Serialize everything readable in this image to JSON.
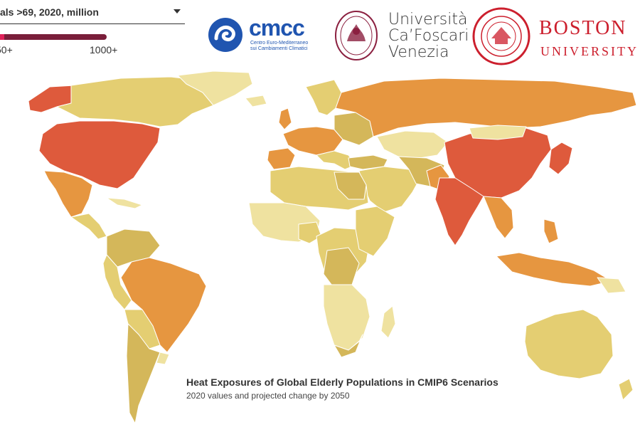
{
  "selector": {
    "label": "als >69, 2020, million"
  },
  "legend": {
    "min_label": "50+",
    "max_label": "1000+",
    "start_color": "#e0225a",
    "end_color": "#7a1e3a"
  },
  "logos": {
    "cmcc_word": "cmcc",
    "cmcc_subtitle_1": "Centro Euro-Mediterraneo",
    "cmcc_subtitle_2": "sui Cambiamenti Climatici",
    "cafoscari_line1": "Università",
    "cafoscari_line2": "Ca’Foscari",
    "cafoscari_line3": "Venezia",
    "bu_line1": "BOSTON",
    "bu_line2": "UNIVERSITY"
  },
  "caption": {
    "title": "Heat Exposures of Global Elderly Populations in CMIP6 Scenarios",
    "subtitle": "2020 values and projected change by 2050"
  },
  "map_colors": {
    "highest": "#de5a3c",
    "high": "#e69640",
    "mid": "#d4b75a",
    "low": "#e4ce72",
    "lowest": "#efe2a0"
  }
}
